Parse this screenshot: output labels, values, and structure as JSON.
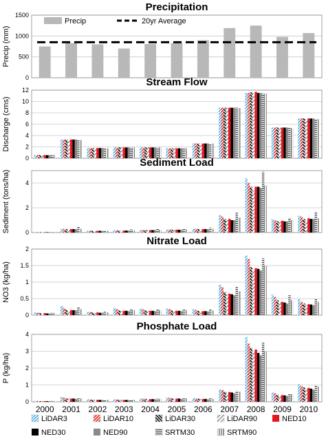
{
  "chart_data": [
    {
      "type": "bar",
      "title": "Precipitation",
      "ylabel": "Precip (mm)",
      "ylim": [
        0,
        1500
      ],
      "yticks": [
        "0",
        "500",
        "1000",
        "1500"
      ],
      "grid": true,
      "categories": [
        "2000",
        "2001",
        "2002",
        "2003",
        "2004",
        "2005",
        "2006",
        "2007",
        "2008",
        "2009",
        "2010"
      ],
      "series": [
        {
          "name": "Precip",
          "values": [
            750,
            830,
            800,
            700,
            810,
            830,
            900,
            1190,
            1250,
            980,
            1070
          ],
          "color": "#b8b8b8"
        },
        {
          "name": "20yr Average",
          "values": [
            850,
            850,
            850,
            850,
            850,
            850,
            850,
            850,
            850,
            850,
            850
          ],
          "color": "#000000",
          "style": "dashed line"
        }
      ],
      "legend": "top-left"
    },
    {
      "type": "bar",
      "title": "Stream Flow",
      "ylabel": "Discharge (cms)",
      "ylim": [
        0,
        12
      ],
      "yticks": [
        "0",
        "2",
        "4",
        "6",
        "8",
        "10",
        "12"
      ],
      "grid": true,
      "categories": [
        "2000",
        "2001",
        "2002",
        "2003",
        "2004",
        "2005",
        "2006",
        "2007",
        "2008",
        "2009",
        "2010"
      ],
      "series": [
        {
          "name": "LiDAR3",
          "values": [
            0.55,
            3.3,
            1.8,
            1.9,
            1.9,
            1.75,
            2.6,
            8.9,
            11.5,
            5.4,
            7.0
          ]
        },
        {
          "name": "LiDAR10",
          "values": [
            0.55,
            3.3,
            1.8,
            1.9,
            1.9,
            1.75,
            2.6,
            8.9,
            11.5,
            5.4,
            7.0
          ]
        },
        {
          "name": "LiDAR30",
          "values": [
            0.55,
            3.3,
            1.8,
            1.9,
            1.9,
            1.75,
            2.6,
            8.9,
            11.6,
            5.4,
            7.0
          ]
        },
        {
          "name": "LiDAR90",
          "values": [
            0.55,
            3.2,
            1.75,
            1.9,
            1.9,
            1.75,
            2.6,
            8.85,
            11.4,
            5.35,
            6.9
          ]
        },
        {
          "name": "NED10",
          "values": [
            0.55,
            3.3,
            1.8,
            1.9,
            1.9,
            1.75,
            2.6,
            8.9,
            11.7,
            5.4,
            7.0
          ]
        },
        {
          "name": "NED30",
          "values": [
            0.55,
            3.3,
            1.8,
            1.9,
            1.9,
            1.75,
            2.6,
            8.9,
            11.5,
            5.4,
            7.0
          ]
        },
        {
          "name": "NED90",
          "values": [
            0.55,
            3.3,
            1.8,
            1.9,
            1.9,
            1.75,
            2.6,
            8.9,
            11.5,
            5.4,
            7.0
          ]
        },
        {
          "name": "SRTM30",
          "values": [
            0.55,
            3.2,
            1.75,
            1.9,
            1.9,
            1.75,
            2.6,
            8.9,
            11.4,
            5.35,
            6.95
          ]
        },
        {
          "name": "SRTM90",
          "values": [
            0.55,
            3.2,
            1.75,
            1.9,
            1.9,
            1.75,
            2.6,
            8.85,
            11.4,
            5.3,
            6.9
          ]
        }
      ]
    },
    {
      "type": "bar",
      "title": "Sediment Load",
      "ylabel": "Sediment (tons/ha)",
      "ylim": [
        0,
        5
      ],
      "yticks": [
        "0",
        "2",
        "4"
      ],
      "grid": true,
      "categories": [
        "2000",
        "2001",
        "2002",
        "2003",
        "2004",
        "2005",
        "2006",
        "2007",
        "2008",
        "2009",
        "2010"
      ],
      "series": [
        {
          "name": "LiDAR3",
          "values": [
            0.04,
            0.3,
            0.15,
            0.18,
            0.22,
            0.25,
            0.3,
            1.4,
            4.4,
            1.1,
            1.35
          ]
        },
        {
          "name": "LiDAR10",
          "values": [
            0.04,
            0.3,
            0.15,
            0.18,
            0.22,
            0.25,
            0.3,
            1.3,
            4.0,
            1.0,
            1.3
          ]
        },
        {
          "name": "LiDAR30",
          "values": [
            0.03,
            0.28,
            0.14,
            0.16,
            0.2,
            0.23,
            0.28,
            1.1,
            3.7,
            0.9,
            1.1
          ]
        },
        {
          "name": "LiDAR90",
          "values": [
            0.03,
            0.25,
            0.12,
            0.15,
            0.18,
            0.2,
            0.25,
            1.0,
            3.4,
            0.85,
            1.0
          ]
        },
        {
          "name": "NED10",
          "values": [
            0.03,
            0.28,
            0.14,
            0.16,
            0.2,
            0.23,
            0.28,
            1.1,
            3.7,
            0.95,
            1.15
          ]
        },
        {
          "name": "NED30",
          "values": [
            0.03,
            0.28,
            0.14,
            0.16,
            0.2,
            0.23,
            0.28,
            1.0,
            3.7,
            0.9,
            1.1
          ]
        },
        {
          "name": "NED90",
          "values": [
            0.03,
            0.27,
            0.13,
            0.16,
            0.2,
            0.22,
            0.27,
            1.0,
            3.6,
            0.9,
            1.1
          ]
        },
        {
          "name": "SRTM30",
          "values": [
            0.05,
            0.45,
            0.2,
            0.25,
            0.3,
            0.35,
            0.4,
            1.6,
            4.9,
            1.2,
            1.7
          ]
        },
        {
          "name": "SRTM90",
          "values": [
            0.04,
            0.3,
            0.14,
            0.18,
            0.22,
            0.25,
            0.3,
            1.2,
            3.8,
            1.0,
            1.15
          ]
        }
      ]
    },
    {
      "type": "bar",
      "title": "Nitrate Load",
      "ylabel": "NO3 (kg/ha)",
      "ylim": [
        0,
        2
      ],
      "yticks": [
        "0",
        "0.5",
        "1",
        "1.5",
        "2"
      ],
      "grid": true,
      "categories": [
        "2000",
        "2001",
        "2002",
        "2003",
        "2004",
        "2005",
        "2006",
        "2007",
        "2008",
        "2009",
        "2010"
      ],
      "series": [
        {
          "name": "LiDAR3",
          "values": [
            0.08,
            0.28,
            0.1,
            0.22,
            0.2,
            0.2,
            0.18,
            0.92,
            1.8,
            0.62,
            0.48
          ]
        },
        {
          "name": "LiDAR10",
          "values": [
            0.07,
            0.22,
            0.09,
            0.18,
            0.17,
            0.18,
            0.16,
            0.85,
            1.7,
            0.55,
            0.4
          ]
        },
        {
          "name": "LiDAR30",
          "values": [
            0.06,
            0.16,
            0.08,
            0.14,
            0.14,
            0.14,
            0.13,
            0.7,
            1.45,
            0.45,
            0.35
          ]
        },
        {
          "name": "LiDAR90",
          "values": [
            0.05,
            0.13,
            0.07,
            0.12,
            0.12,
            0.12,
            0.11,
            0.62,
            1.35,
            0.38,
            0.3
          ]
        },
        {
          "name": "NED10",
          "values": [
            0.06,
            0.15,
            0.08,
            0.13,
            0.13,
            0.13,
            0.12,
            0.65,
            1.42,
            0.4,
            0.33
          ]
        },
        {
          "name": "NED30",
          "values": [
            0.05,
            0.15,
            0.07,
            0.13,
            0.13,
            0.13,
            0.12,
            0.63,
            1.4,
            0.38,
            0.32
          ]
        },
        {
          "name": "NED90",
          "values": [
            0.05,
            0.14,
            0.07,
            0.12,
            0.12,
            0.12,
            0.11,
            0.6,
            1.35,
            0.35,
            0.3
          ]
        },
        {
          "name": "SRTM30",
          "values": [
            0.08,
            0.25,
            0.1,
            0.2,
            0.18,
            0.19,
            0.17,
            0.85,
            1.72,
            0.6,
            0.48
          ]
        },
        {
          "name": "SRTM90",
          "values": [
            0.06,
            0.18,
            0.08,
            0.15,
            0.15,
            0.15,
            0.14,
            0.72,
            1.5,
            0.45,
            0.4
          ]
        }
      ]
    },
    {
      "type": "bar",
      "title": "Phosphate Load",
      "ylabel": "P (kg/ha)",
      "ylim": [
        0,
        4
      ],
      "yticks": [
        "0",
        "1",
        "2",
        "3",
        "4"
      ],
      "grid": true,
      "categories": [
        "2000",
        "2001",
        "2002",
        "2003",
        "2004",
        "2005",
        "2006",
        "2007",
        "2008",
        "2009",
        "2010"
      ],
      "series": [
        {
          "name": "LiDAR3",
          "values": [
            0.05,
            0.28,
            0.15,
            0.15,
            0.2,
            0.25,
            0.22,
            0.75,
            3.85,
            0.55,
            1.05
          ]
        },
        {
          "name": "LiDAR10",
          "values": [
            0.05,
            0.25,
            0.14,
            0.14,
            0.19,
            0.24,
            0.2,
            0.7,
            3.45,
            0.5,
            0.95
          ]
        },
        {
          "name": "LiDAR30",
          "values": [
            0.04,
            0.2,
            0.12,
            0.12,
            0.17,
            0.2,
            0.18,
            0.6,
            3.2,
            0.42,
            0.85
          ]
        },
        {
          "name": "LiDAR90",
          "values": [
            0.04,
            0.18,
            0.11,
            0.11,
            0.16,
            0.18,
            0.16,
            0.55,
            3.0,
            0.38,
            0.8
          ]
        },
        {
          "name": "NED10",
          "values": [
            0.04,
            0.19,
            0.12,
            0.11,
            0.16,
            0.19,
            0.17,
            0.58,
            3.1,
            0.4,
            0.82
          ]
        },
        {
          "name": "NED30",
          "values": [
            0.04,
            0.19,
            0.11,
            0.11,
            0.16,
            0.19,
            0.17,
            0.55,
            2.9,
            0.38,
            0.78
          ]
        },
        {
          "name": "NED90",
          "values": [
            0.04,
            0.17,
            0.11,
            0.1,
            0.15,
            0.17,
            0.15,
            0.5,
            2.75,
            0.35,
            0.72
          ]
        },
        {
          "name": "SRTM30",
          "values": [
            0.05,
            0.22,
            0.13,
            0.13,
            0.18,
            0.22,
            0.2,
            0.65,
            3.5,
            0.5,
            0.98
          ]
        },
        {
          "name": "SRTM90",
          "values": [
            0.04,
            0.2,
            0.12,
            0.12,
            0.17,
            0.2,
            0.18,
            0.6,
            3.0,
            0.45,
            0.9
          ]
        }
      ]
    }
  ],
  "legend": {
    "entries": [
      "LiDAR3",
      "LiDAR10",
      "LiDAR30",
      "LiDAR90",
      "NED10",
      "NED30",
      "NED90",
      "SRTM30",
      "SRTM90"
    ],
    "placement": "bottom"
  },
  "series_styles": {
    "LiDAR3": {
      "pattern": "diagonal-dashed",
      "color": "#4fb3e8"
    },
    "LiDAR10": {
      "pattern": "diagonal-dashed",
      "color": "#e0201c"
    },
    "LiDAR30": {
      "pattern": "diagonal-dashed",
      "color": "#000000"
    },
    "LiDAR90": {
      "pattern": "diagonal-dashed",
      "color": "#808080"
    },
    "NED10": {
      "pattern": "solid",
      "color": "#e8141e"
    },
    "NED30": {
      "pattern": "solid",
      "color": "#000000"
    },
    "NED90": {
      "pattern": "solid",
      "color": "#8a8a8a"
    },
    "SRTM30": {
      "pattern": "horizontal-stripes",
      "color": "#505050"
    },
    "SRTM90": {
      "pattern": "vertical-stripes",
      "color": "#707070"
    }
  }
}
